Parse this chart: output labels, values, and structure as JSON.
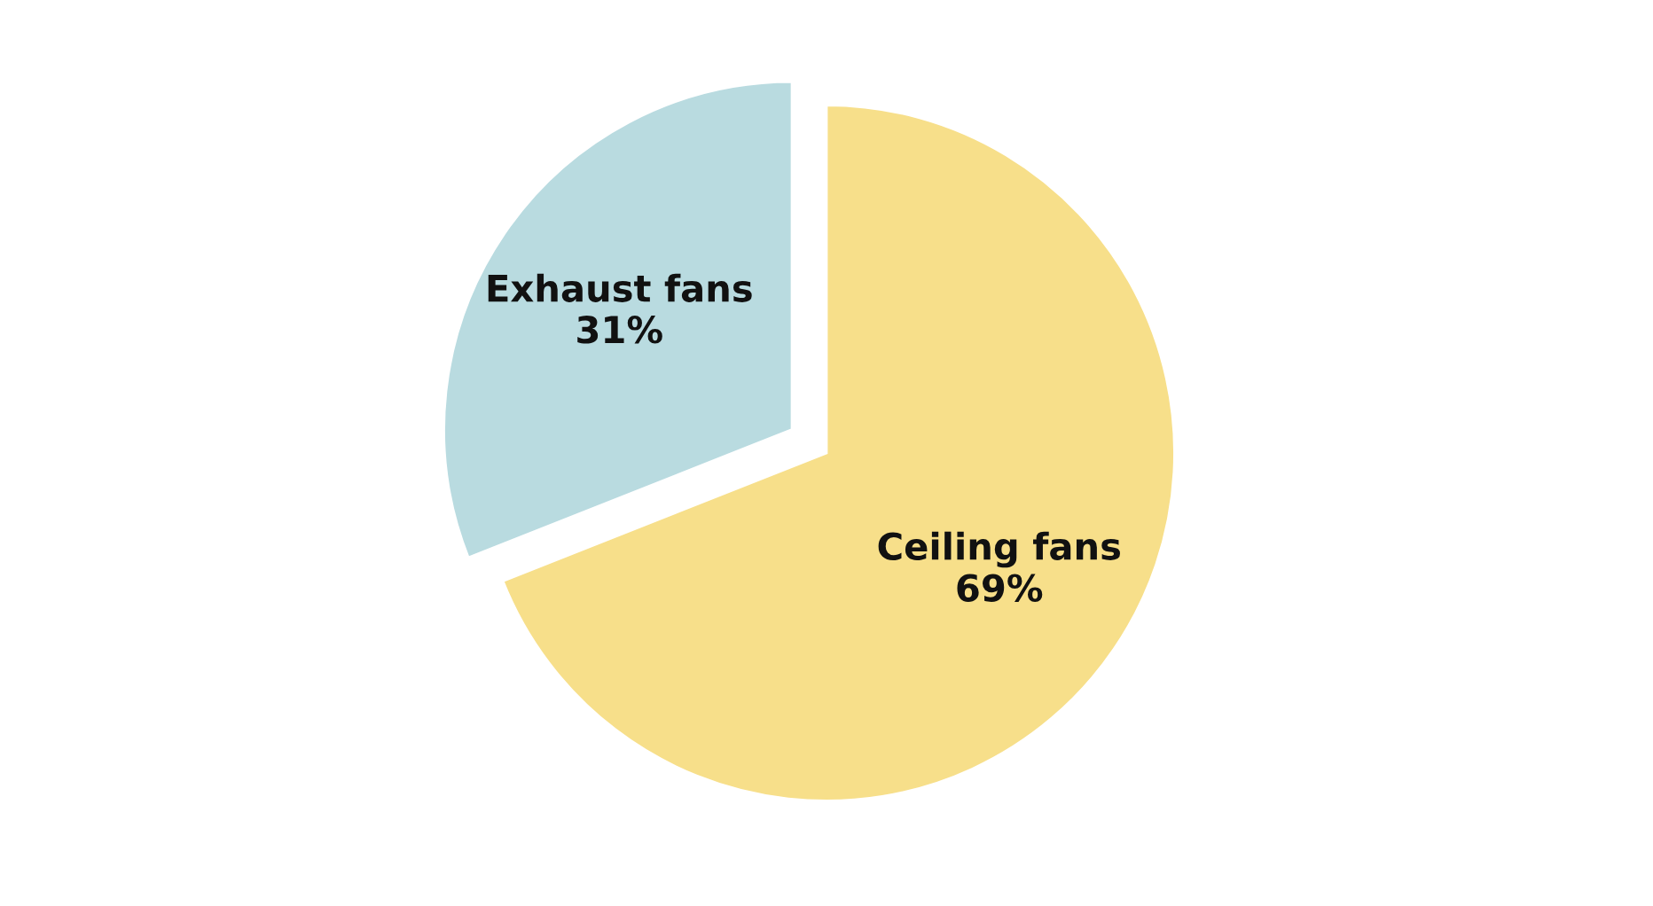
{
  "chart_data": {
    "type": "pie",
    "categories": [
      "Ceiling fans",
      "Exhaust fans"
    ],
    "values": [
      69,
      31
    ],
    "colors": [
      "#f7df8a",
      "#b9dbe0"
    ],
    "value_labels": [
      "69%",
      "31%"
    ]
  }
}
